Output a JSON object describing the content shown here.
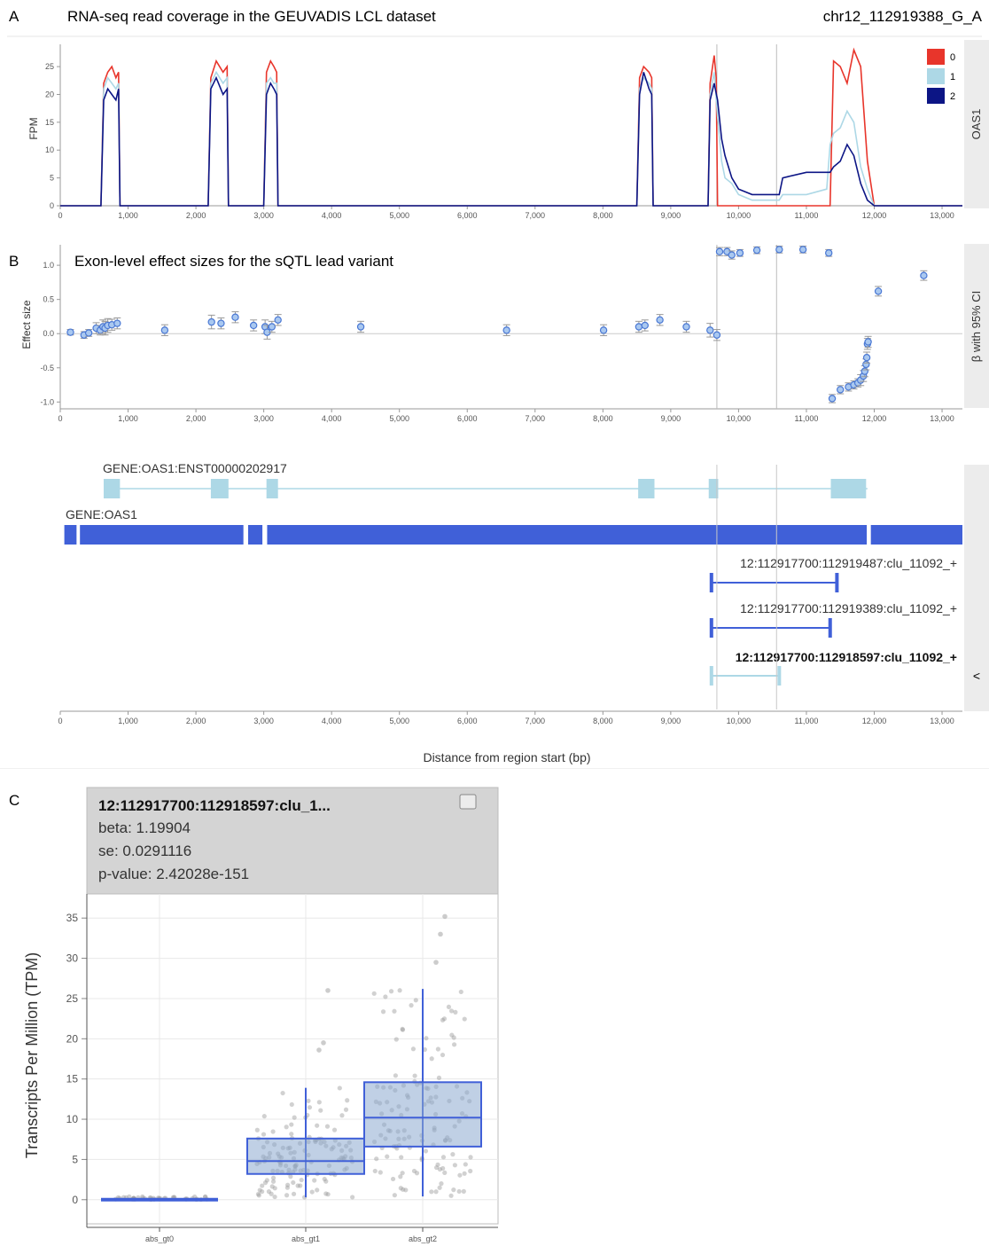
{
  "panel_a": {
    "letter": "A",
    "title": "RNA-seq read coverage in the GEUVADIS LCL dataset",
    "variant": "chr12_112919388_G_A",
    "side_label": "OAS1",
    "ylabel": "FPM",
    "legend": [
      "0",
      "1",
      "2"
    ]
  },
  "panel_b": {
    "letter": "B",
    "title": "Exon-level effect sizes for the sQTL lead variant",
    "ylabel": "Effect size",
    "side_label": "β with 95% CI"
  },
  "tracks": {
    "transcript_label": "GENE:OAS1:ENST00000202917",
    "gene_label": "GENE:OAS1",
    "clusters": [
      {
        "label": "12:112917700:112919487:clu_11092_+",
        "start": 9600,
        "end": 11450,
        "bold": false,
        "color": "#4060d8"
      },
      {
        "label": "12:112917700:112919389:clu_11092_+",
        "start": 9600,
        "end": 11350,
        "bold": false,
        "color": "#4060d8"
      },
      {
        "label": "12:112917700:112918597:clu_11092_+",
        "start": 9600,
        "end": 10600,
        "bold": true,
        "color": "#add8e6"
      }
    ],
    "collapse_glyph": "<",
    "xlabel": "Distance from region start (bp)"
  },
  "panel_c": {
    "letter": "C",
    "tooltip_title": "12:112917700:112918597:clu_1...",
    "beta": "beta: 1.19904",
    "se": "se: 0.0291116",
    "pvalue": "p-value: 2.42028e-151",
    "ylabel": "Transcripts Per Million (TPM)"
  },
  "colors": {
    "gt0": "#e8352b",
    "gt1": "#add8e6",
    "gt2": "#0c1585",
    "accent": "#4060d8",
    "box": "#8caad0"
  },
  "chart_data": [
    {
      "type": "line",
      "title": "RNA-seq read coverage in the GEUVADIS LCL dataset",
      "xlabel": "",
      "ylabel": "FPM",
      "xlim": [
        0,
        13300
      ],
      "ylim": [
        0,
        29
      ],
      "xticks": [
        0,
        1000,
        2000,
        3000,
        4000,
        5000,
        6000,
        7000,
        8000,
        9000,
        10000,
        11000,
        12000,
        13000
      ],
      "xtick_labels": [
        "0",
        "1,000",
        "2,000",
        "3,000",
        "4,000",
        "5,000",
        "6,000",
        "7,000",
        "8,000",
        "9,000",
        "10,000",
        "11,000",
        "12,000",
        "13,000"
      ],
      "yticks": [
        0,
        5,
        10,
        15,
        20,
        25
      ],
      "vlines": [
        9680,
        10560
      ],
      "series": [
        {
          "name": "0",
          "color": "#e8352b",
          "x": [
            0,
            600,
            640,
            700,
            760,
            820,
            860,
            880,
            900,
            2180,
            2220,
            2300,
            2400,
            2460,
            2480,
            2500,
            3000,
            3040,
            3100,
            3150,
            3190,
            3210,
            8500,
            8540,
            8600,
            8680,
            8720,
            8740,
            9550,
            9580,
            9640,
            9670,
            9690,
            11350,
            11400,
            11500,
            11600,
            11700,
            11800,
            11900,
            12000,
            13300
          ],
          "y": [
            0,
            0,
            22,
            24,
            25,
            23,
            24,
            0,
            0,
            0,
            23,
            26,
            24,
            25,
            0,
            0,
            0,
            24,
            26,
            25,
            24,
            0,
            0,
            23,
            25,
            24,
            23,
            0,
            0,
            22,
            27,
            23,
            0,
            0,
            26,
            25,
            22,
            28,
            25,
            8,
            0,
            0
          ]
        },
        {
          "name": "1",
          "color": "#add8e6",
          "x": [
            0,
            600,
            640,
            700,
            760,
            820,
            860,
            880,
            900,
            2180,
            2220,
            2300,
            2400,
            2460,
            2480,
            2500,
            3000,
            3040,
            3100,
            3150,
            3190,
            3210,
            8500,
            8540,
            8600,
            8680,
            8720,
            8740,
            9550,
            9580,
            9640,
            9690,
            9750,
            9800,
            9900,
            10000,
            10200,
            10400,
            10600,
            10650,
            11000,
            11300,
            11350,
            11400,
            11500,
            11600,
            11700,
            11800,
            11900,
            12000,
            13300
          ],
          "y": [
            0,
            0,
            21,
            23,
            22,
            21,
            22,
            0,
            0,
            0,
            22,
            24,
            22,
            23,
            0,
            0,
            0,
            22,
            23,
            22,
            22,
            0,
            0,
            21,
            23,
            22,
            21,
            0,
            0,
            20,
            24,
            16,
            8,
            5,
            4,
            2,
            1,
            1,
            1,
            2,
            2,
            3,
            11,
            13,
            14,
            17,
            15,
            7,
            3,
            0,
            0
          ]
        },
        {
          "name": "2",
          "color": "#0c1585",
          "x": [
            0,
            600,
            640,
            700,
            760,
            820,
            860,
            880,
            900,
            2180,
            2220,
            2300,
            2400,
            2460,
            2480,
            2500,
            3000,
            3040,
            3100,
            3150,
            3190,
            3210,
            8500,
            8540,
            8600,
            8680,
            8720,
            8740,
            9550,
            9580,
            9640,
            9690,
            9750,
            9800,
            9900,
            10000,
            10200,
            10400,
            10600,
            10650,
            11000,
            11300,
            11350,
            11400,
            11500,
            11600,
            11700,
            11800,
            11900,
            12000,
            13300
          ],
          "y": [
            0,
            0,
            19,
            21,
            20,
            19,
            21,
            0,
            0,
            0,
            21,
            23,
            20,
            21,
            0,
            0,
            0,
            20,
            22,
            21,
            20,
            0,
            0,
            20,
            24,
            21,
            20,
            0,
            0,
            19,
            22,
            19,
            12,
            9,
            5,
            3,
            2,
            2,
            2,
            5,
            6,
            6,
            6,
            7,
            8,
            11,
            9,
            4,
            1,
            0,
            0
          ]
        }
      ]
    },
    {
      "type": "scatter",
      "title": "Exon-level effect sizes for the sQTL lead variant",
      "xlabel": "",
      "ylabel": "Effect size",
      "xlim": [
        0,
        13300
      ],
      "ylim": [
        -1.1,
        1.3
      ],
      "xticks": [
        0,
        1000,
        2000,
        3000,
        4000,
        5000,
        6000,
        7000,
        8000,
        9000,
        10000,
        11000,
        12000,
        13000
      ],
      "xtick_labels": [
        "0",
        "1,000",
        "2,000",
        "3,000",
        "4,000",
        "5,000",
        "6,000",
        "7,000",
        "8,000",
        "9,000",
        "10,000",
        "11,000",
        "12,000",
        "13,000"
      ],
      "yticks": [
        -1.0,
        -0.5,
        0.0,
        0.5,
        1.0
      ],
      "ytick_labels": [
        "-1.0",
        "-0.5",
        "0.0",
        "0.5",
        "1.0"
      ],
      "vlines": [
        9680,
        10560
      ],
      "x": [
        150,
        350,
        420,
        530,
        590,
        630,
        660,
        700,
        760,
        840,
        1540,
        2230,
        2370,
        2580,
        2850,
        3020,
        3050,
        3120,
        3210,
        4430,
        6580,
        8010,
        8530,
        8620,
        8840,
        9230,
        9580,
        9680,
        9720,
        9830,
        9900,
        10020,
        10270,
        10600,
        10950,
        11330,
        11380,
        11500,
        11620,
        11700,
        11760,
        11800,
        11840,
        11860,
        11880,
        11890,
        11900,
        11910,
        12060,
        12730
      ],
      "y": [
        0.02,
        -0.02,
        0.01,
        0.08,
        0.05,
        0.1,
        0.08,
        0.12,
        0.13,
        0.15,
        0.05,
        0.17,
        0.15,
        0.24,
        0.12,
        0.1,
        0.02,
        0.1,
        0.2,
        0.1,
        0.05,
        0.05,
        0.1,
        0.12,
        0.2,
        0.1,
        0.05,
        -0.02,
        1.2,
        1.2,
        1.15,
        1.18,
        1.22,
        1.23,
        1.23,
        1.18,
        -0.95,
        -0.82,
        -0.78,
        -0.75,
        -0.72,
        -0.68,
        -0.62,
        -0.55,
        -0.45,
        -0.35,
        -0.15,
        -0.12,
        0.62,
        0.85
      ],
      "err": [
        0.04,
        0.05,
        0.05,
        0.08,
        0.07,
        0.1,
        0.1,
        0.1,
        0.08,
        0.08,
        0.08,
        0.1,
        0.08,
        0.08,
        0.08,
        0.1,
        0.1,
        0.08,
        0.08,
        0.08,
        0.08,
        0.08,
        0.08,
        0.08,
        0.08,
        0.08,
        0.1,
        0.08,
        0.06,
        0.06,
        0.06,
        0.05,
        0.05,
        0.05,
        0.05,
        0.05,
        0.06,
        0.06,
        0.06,
        0.06,
        0.06,
        0.08,
        0.08,
        0.08,
        0.08,
        0.08,
        0.08,
        0.08,
        0.07,
        0.07
      ]
    },
    {
      "type": "box",
      "ylabel": "Transcripts Per Million (TPM)",
      "categories": [
        "abs_gt0",
        "abs_gt1",
        "abs_gt2"
      ],
      "ylim": [
        -3,
        38
      ],
      "yticks": [
        0,
        5,
        10,
        15,
        20,
        25,
        30,
        35
      ],
      "boxes": [
        {
          "q1": 0,
          "median": 0,
          "q3": 0,
          "whisker_low": 0,
          "whisker_high": 0
        },
        {
          "q1": 3.2,
          "median": 4.8,
          "q3": 7.6,
          "whisker_low": 0.3,
          "whisker_high": 13.9
        },
        {
          "q1": 6.6,
          "median": 10.2,
          "q3": 14.6,
          "whisker_low": 0.4,
          "whisker_high": 26.2
        }
      ],
      "outliers": [
        {
          "category": "abs_gt1",
          "values": [
            18.6,
            19.5,
            26.0
          ]
        },
        {
          "category": "abs_gt2",
          "values": [
            29.5,
            33.0,
            35.2
          ]
        }
      ]
    }
  ]
}
